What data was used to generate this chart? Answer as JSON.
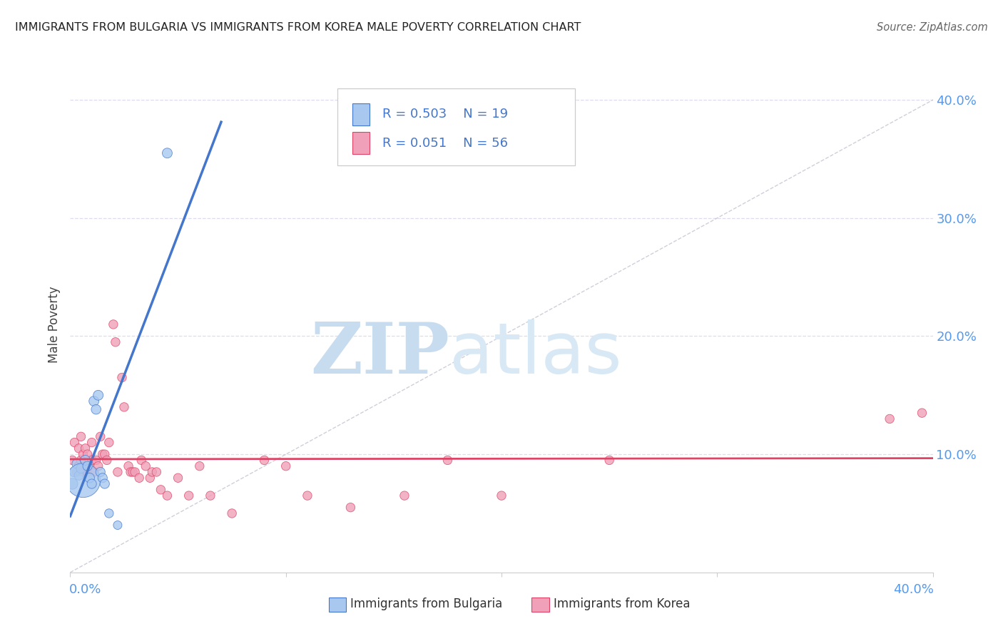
{
  "title": "IMMIGRANTS FROM BULGARIA VS IMMIGRANTS FROM KOREA MALE POVERTY CORRELATION CHART",
  "source": "Source: ZipAtlas.com",
  "ylabel": "Male Poverty",
  "xlim": [
    0.0,
    0.4
  ],
  "ylim": [
    0.0,
    0.42
  ],
  "ytick_values": [
    0.1,
    0.2,
    0.3,
    0.4
  ],
  "color_bulgaria": "#A8C8F0",
  "color_korea": "#F0A0B8",
  "line_color_bulgaria": "#4477CC",
  "line_color_korea": "#DD4466",
  "diagonal_color": "#BBBBCC",
  "bg_color": "#FFFFFF",
  "grid_color": "#DDDDEE",
  "legend_r_bulgaria": "R = 0.503",
  "legend_n_bulgaria": "N = 19",
  "legend_r_korea": "R = 0.051",
  "legend_n_korea": "N = 56",
  "bulgaria_x": [
    0.001,
    0.002,
    0.003,
    0.004,
    0.005,
    0.006,
    0.007,
    0.008,
    0.009,
    0.01,
    0.011,
    0.012,
    0.013,
    0.014,
    0.015,
    0.016,
    0.018,
    0.022,
    0.045
  ],
  "bulgaria_y": [
    0.075,
    0.085,
    0.092,
    0.082,
    0.088,
    0.078,
    0.095,
    0.09,
    0.08,
    0.075,
    0.145,
    0.138,
    0.15,
    0.085,
    0.08,
    0.075,
    0.05,
    0.04,
    0.355
  ],
  "bulgaria_size": [
    120,
    100,
    90,
    85,
    90,
    1200,
    100,
    90,
    95,
    90,
    100,
    95,
    100,
    90,
    90,
    90,
    80,
    75,
    100
  ],
  "korea_x": [
    0.001,
    0.002,
    0.003,
    0.004,
    0.004,
    0.005,
    0.005,
    0.006,
    0.006,
    0.007,
    0.007,
    0.008,
    0.008,
    0.009,
    0.01,
    0.01,
    0.011,
    0.012,
    0.013,
    0.014,
    0.015,
    0.016,
    0.017,
    0.018,
    0.02,
    0.021,
    0.022,
    0.024,
    0.025,
    0.027,
    0.028,
    0.029,
    0.03,
    0.032,
    0.033,
    0.035,
    0.037,
    0.038,
    0.04,
    0.042,
    0.045,
    0.05,
    0.055,
    0.06,
    0.065,
    0.075,
    0.09,
    0.1,
    0.11,
    0.13,
    0.155,
    0.175,
    0.2,
    0.25,
    0.38,
    0.395
  ],
  "korea_y": [
    0.095,
    0.11,
    0.085,
    0.09,
    0.105,
    0.095,
    0.115,
    0.085,
    0.1,
    0.09,
    0.105,
    0.085,
    0.1,
    0.09,
    0.095,
    0.11,
    0.085,
    0.095,
    0.09,
    0.115,
    0.1,
    0.1,
    0.095,
    0.11,
    0.21,
    0.195,
    0.085,
    0.165,
    0.14,
    0.09,
    0.085,
    0.085,
    0.085,
    0.08,
    0.095,
    0.09,
    0.08,
    0.085,
    0.085,
    0.07,
    0.065,
    0.08,
    0.065,
    0.09,
    0.065,
    0.05,
    0.095,
    0.09,
    0.065,
    0.055,
    0.065,
    0.095,
    0.065,
    0.095,
    0.13,
    0.135
  ],
  "korea_size": [
    80,
    80,
    80,
    80,
    80,
    80,
    80,
    80,
    80,
    80,
    80,
    80,
    80,
    80,
    80,
    80,
    80,
    80,
    80,
    80,
    80,
    80,
    80,
    80,
    80,
    80,
    80,
    80,
    80,
    80,
    80,
    80,
    80,
    80,
    80,
    80,
    80,
    80,
    80,
    80,
    80,
    80,
    80,
    80,
    80,
    80,
    80,
    80,
    80,
    80,
    80,
    80,
    80,
    80,
    80,
    80
  ]
}
